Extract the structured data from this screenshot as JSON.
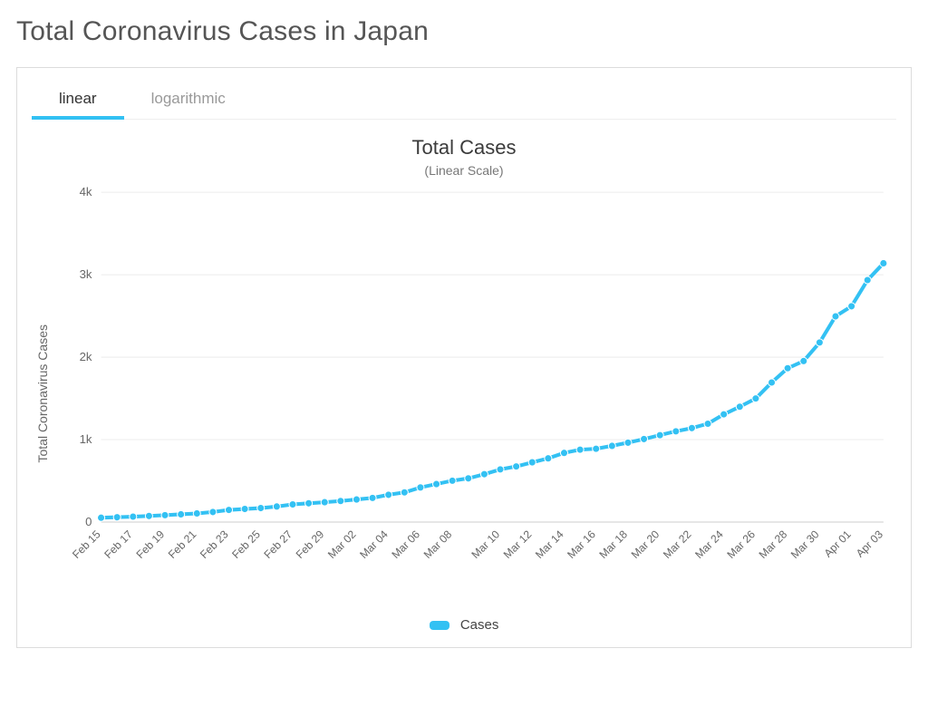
{
  "page": {
    "title": "Total Coronavirus Cases in Japan"
  },
  "tabs": {
    "items": [
      {
        "label": "linear",
        "active": true
      },
      {
        "label": "logarithmic",
        "active": false
      }
    ]
  },
  "chart": {
    "type": "line",
    "title": "Total Cases",
    "subtitle": "(Linear Scale)",
    "y_axis_title": "Total Coronavirus Cases",
    "background_color": "#ffffff",
    "grid_color": "#ececec",
    "axis_color": "#dedede",
    "tick_label_color": "#666666",
    "title_fontsize": 22,
    "subtitle_fontsize": 14,
    "tick_fontsize": 13,
    "ylim": [
      0,
      4000
    ],
    "yticks": [
      {
        "value": 0,
        "label": "0"
      },
      {
        "value": 1000,
        "label": "1k"
      },
      {
        "value": 2000,
        "label": "2k"
      },
      {
        "value": 3000,
        "label": "3k"
      },
      {
        "value": 4000,
        "label": "4k"
      }
    ],
    "xtick_labels": [
      "Feb 15",
      "Feb 17",
      "Feb 19",
      "Feb 21",
      "Feb 23",
      "Feb 25",
      "Feb 27",
      "Feb 29",
      "Mar 02",
      "Mar 04",
      "Mar 06",
      "Mar 08",
      "Mar 10",
      "Mar 12",
      "Mar 14",
      "Mar 16",
      "Mar 18",
      "Mar 20",
      "Mar 22",
      "Mar 24",
      "Mar 26",
      "Mar 28",
      "Mar 30",
      "Apr 01",
      "Apr 03"
    ],
    "series": {
      "name": "Cases",
      "color": "#33c1f3",
      "marker_fill": "#33c1f3",
      "marker_stroke": "#ffffff",
      "marker_radius": 4,
      "line_width": 4,
      "x": [
        "Feb 15",
        "Feb 16",
        "Feb 17",
        "Feb 18",
        "Feb 19",
        "Feb 20",
        "Feb 21",
        "Feb 22",
        "Feb 23",
        "Feb 24",
        "Feb 25",
        "Feb 26",
        "Feb 27",
        "Feb 28",
        "Feb 29",
        "Mar 01",
        "Mar 02",
        "Mar 03",
        "Mar 04",
        "Mar 05",
        "Mar 06",
        "Mar 07",
        "Mar 08",
        "Mar 09",
        "Mar 10",
        "Mar 11",
        "Mar 12",
        "Mar 13",
        "Mar 14",
        "Mar 15",
        "Mar 16",
        "Mar 17",
        "Mar 18",
        "Mar 19",
        "Mar 20",
        "Mar 21",
        "Mar 22",
        "Mar 23",
        "Mar 24",
        "Mar 25",
        "Mar 26",
        "Mar 27",
        "Mar 28",
        "Mar 29",
        "Mar 30",
        "Mar 31",
        "Apr 01",
        "Apr 02",
        "Apr 03",
        "Apr 04"
      ],
      "y": [
        53,
        59,
        66,
        74,
        84,
        94,
        105,
        122,
        147,
        159,
        170,
        189,
        214,
        228,
        241,
        256,
        274,
        293,
        331,
        360,
        420,
        461,
        502,
        530,
        581,
        639,
        675,
        725,
        773,
        839,
        878,
        889,
        924,
        963,
        1007,
        1054,
        1101,
        1140,
        1193,
        1307,
        1399,
        1499,
        1693,
        1866,
        1953,
        2178,
        2495,
        2617,
        2935,
        3139
      ]
    },
    "legend_label": "Cases"
  }
}
